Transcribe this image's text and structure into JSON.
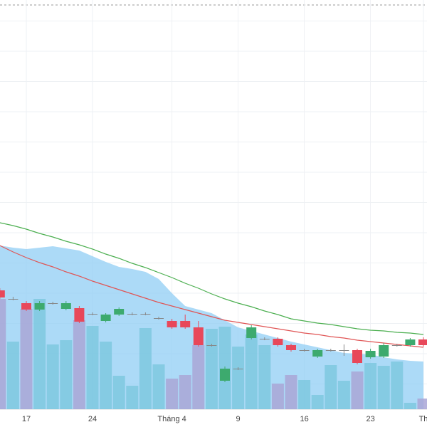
{
  "chart_data": {
    "type": "candlestick",
    "categories": [
      null,
      null,
      "17",
      null,
      null,
      null,
      null,
      "24",
      null,
      null,
      null,
      null,
      null,
      "Tháng 4",
      null,
      null,
      null,
      null,
      "9",
      null,
      null,
      null,
      null,
      "16",
      null,
      null,
      null,
      null,
      "23",
      null,
      null,
      null,
      "Th"
    ],
    "open": [
      192,
      180,
      174,
      165,
      174,
      166,
      167,
      159,
      149,
      158,
      159,
      159,
      153,
      149,
      149,
      140,
      115,
      65,
      82,
      125,
      124,
      124,
      115,
      108,
      99,
      108,
      108,
      108,
      98,
      99,
      115,
      115,
      123
    ],
    "high": [
      195,
      183,
      177,
      177,
      176,
      177,
      170,
      161,
      160,
      168,
      161,
      161,
      155,
      152,
      158,
      149,
      117,
      85,
      84,
      143,
      126,
      126,
      117,
      110,
      110,
      110,
      116,
      110,
      110,
      118,
      117,
      125,
      126
    ],
    "low": [
      180,
      178,
      163,
      163,
      172,
      164,
      146,
      157,
      147,
      156,
      157,
      157,
      151,
      138,
      138,
      113,
      113,
      63,
      80,
      123,
      122,
      113,
      106,
      106,
      97,
      106,
      100,
      88,
      96,
      97,
      113,
      113,
      113
    ],
    "close": [
      182,
      180,
      165,
      174,
      174,
      174,
      148,
      159,
      158,
      166,
      159,
      159,
      153,
      140,
      140,
      115,
      115,
      82,
      82,
      140,
      124,
      115,
      108,
      108,
      108,
      108,
      108,
      90,
      107,
      115,
      115,
      123,
      115
    ],
    "up_color": "#3daa6e",
    "down_color": "#e8485a",
    "ylim": [
      0,
      600
    ],
    "area": {
      "color": "#90cdf4",
      "values": [
        255,
        252,
        250,
        252,
        254,
        251,
        248,
        240,
        232,
        225,
        222,
        218,
        208,
        188,
        170,
        165,
        160,
        150,
        140,
        135,
        130,
        125,
        120,
        116,
        112,
        108,
        104,
        103,
        102,
        98,
        95,
        93,
        92
      ]
    },
    "lines": [
      {
        "color": "#4caf50",
        "values": [
          287,
          283,
          278,
          272,
          267,
          261,
          256,
          250,
          243,
          237,
          230,
          224,
          217,
          210,
          202,
          195,
          187,
          180,
          174,
          169,
          163,
          158,
          152,
          149,
          146,
          144,
          141,
          138,
          136,
          135,
          133,
          132,
          130
        ]
      },
      {
        "color": "#e05555",
        "values": [
          255,
          246,
          238,
          231,
          225,
          218,
          212,
          205,
          199,
          193,
          187,
          181,
          175,
          170,
          165,
          160,
          155,
          150,
          147,
          144,
          141,
          138,
          135,
          132,
          130,
          127,
          125,
          122,
          120,
          118,
          116,
          114,
          112
        ]
      }
    ],
    "volume": {
      "values": [
        155,
        95,
        141,
        155,
        91,
        97,
        125,
        117,
        95,
        47,
        33,
        114,
        63,
        43,
        48,
        90,
        113,
        116,
        88,
        105,
        90,
        36,
        48,
        41,
        20,
        62,
        40,
        53,
        65,
        61,
        67,
        9,
        15
      ],
      "ylim": [
        0,
        575
      ],
      "up_color": "#7ec8df",
      "down_color": "#a9a6d6"
    }
  }
}
